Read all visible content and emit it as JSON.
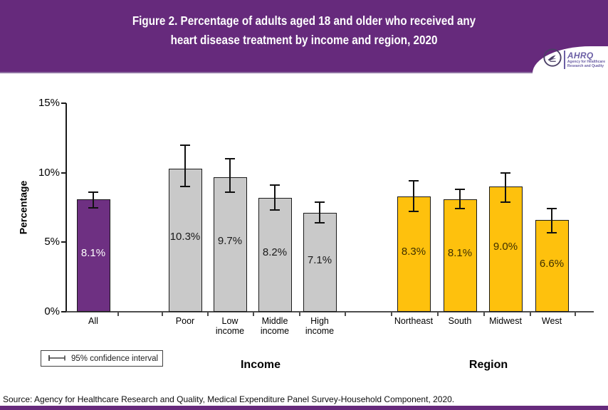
{
  "header": {
    "title_line1": "Figure 2. Percentage of adults aged 18 and older who received any",
    "title_line2": "heart disease treatment by income and region, 2020",
    "logo": {
      "name": "AHRQ",
      "tagline_line1": "Agency for Healthcare",
      "tagline_line2": "Research and Quality"
    }
  },
  "chart_data": {
    "type": "bar",
    "title": "Figure 2. Percentage of adults aged 18 and older who received any heart disease treatment by income and region, 2020",
    "xlabel": "",
    "ylabel": "Percentage",
    "ylim": [
      0,
      15
    ],
    "ytick_interval": 5,
    "yticks": [
      "0%",
      "5%",
      "10%",
      "15%"
    ],
    "grid": false,
    "legend": "95% confidence interval",
    "legend_position": "bottom-left",
    "groups": [
      {
        "label": "",
        "bars": [
          {
            "category": "All",
            "value": 8.1,
            "label": "8.1%",
            "ci_low": 7.5,
            "ci_high": 8.6,
            "color": "#6e3082",
            "label_color": "#ffffff"
          }
        ]
      },
      {
        "label": "Income",
        "bars": [
          {
            "category": "Poor",
            "value": 10.3,
            "label": "10.3%",
            "ci_low": 9.0,
            "ci_high": 12.0,
            "color": "#c9c9c9",
            "label_color": "#1a1a1a"
          },
          {
            "category": "Low\nincome",
            "value": 9.7,
            "label": "9.7%",
            "ci_low": 8.6,
            "ci_high": 11.0,
            "color": "#c9c9c9",
            "label_color": "#1a1a1a"
          },
          {
            "category": "Middle\nincome",
            "value": 8.2,
            "label": "8.2%",
            "ci_low": 7.3,
            "ci_high": 9.1,
            "color": "#c9c9c9",
            "label_color": "#1a1a1a"
          },
          {
            "category": "High\nincome",
            "value": 7.1,
            "label": "7.1%",
            "ci_low": 6.4,
            "ci_high": 7.9,
            "color": "#c9c9c9",
            "label_color": "#1a1a1a"
          }
        ]
      },
      {
        "label": "Region",
        "bars": [
          {
            "category": "Northeast",
            "value": 8.3,
            "label": "8.3%",
            "ci_low": 7.2,
            "ci_high": 9.4,
            "color": "#fec10d",
            "label_color": "#3f3000"
          },
          {
            "category": "South",
            "value": 8.1,
            "label": "8.1%",
            "ci_low": 7.4,
            "ci_high": 8.8,
            "color": "#fec10d",
            "label_color": "#3f3000"
          },
          {
            "category": "Midwest",
            "value": 9.0,
            "label": "9.0%",
            "ci_low": 7.9,
            "ci_high": 10.0,
            "color": "#fec10d",
            "label_color": "#3f3000"
          },
          {
            "category": "West",
            "value": 6.6,
            "label": "6.6%",
            "ci_low": 5.7,
            "ci_high": 7.4,
            "color": "#fec10d",
            "label_color": "#3f3000"
          }
        ]
      }
    ]
  },
  "source": "Source: Agency for Healthcare Research and Quality, Medical Expenditure Panel Survey-Household Component, 2020.",
  "colors": {
    "header_bg": "#662a7c",
    "accent_purple": "#6e3082",
    "bar_gray": "#c9c9c9",
    "bar_gold": "#fec10d",
    "logo_text": "#6b5fa5"
  }
}
